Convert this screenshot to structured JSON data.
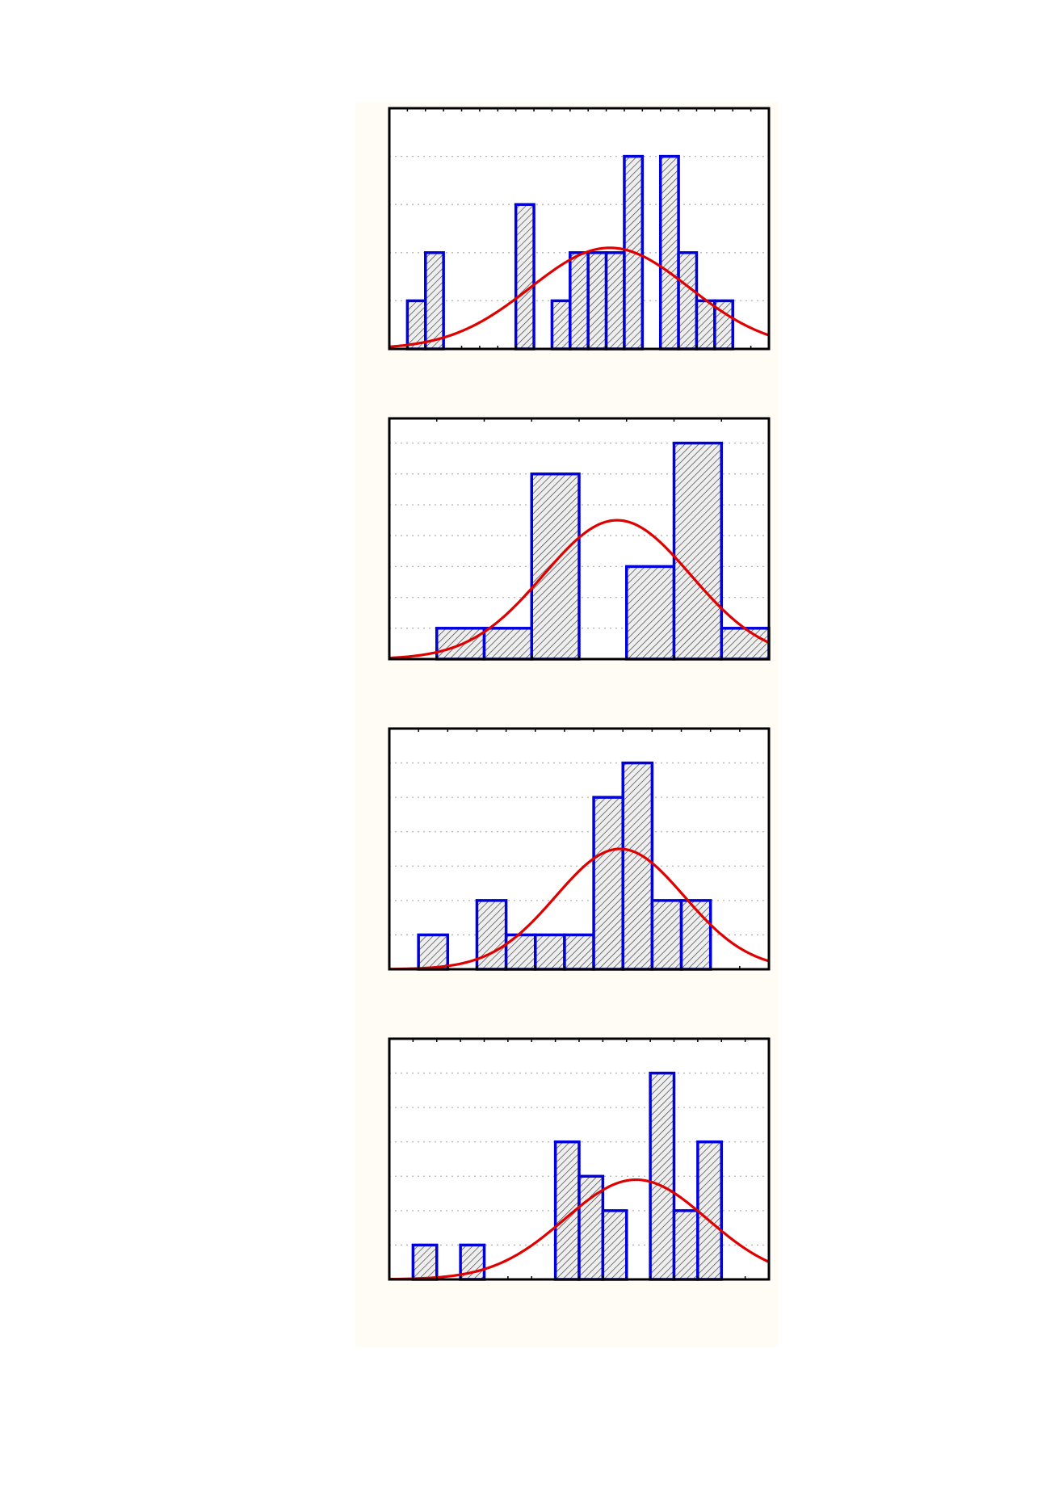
{
  "colors": {
    "panel_background": "#fffcf5",
    "plot_background": "#ffffff",
    "bar_edge": "#0000dd",
    "bar_fill": "#eeeeee",
    "hatch": "#444444",
    "curve": "#e00000",
    "frame": "#000000",
    "grid": "#b4b4b4"
  },
  "chart_data": [
    {
      "type": "bar",
      "series_kind": "histogram",
      "x": [
        0.5,
        1.5,
        2.5,
        3.5,
        4.5,
        5.5,
        6.5,
        7.5,
        8.5,
        9.5,
        10.5,
        11.5,
        12.5,
        13.5,
        14.5,
        15.5,
        16.5,
        17.5,
        18.5,
        19.5,
        20.5
      ],
      "values": [
        0,
        1,
        2,
        0,
        0,
        0,
        0,
        3,
        0,
        1,
        2,
        2,
        2,
        4,
        0,
        4,
        2,
        1,
        1,
        0,
        0
      ],
      "bin_width": 1,
      "xlim": [
        0,
        21
      ],
      "ylim": [
        0,
        5
      ],
      "grid": true,
      "normal_fit": {
        "mean": 12.2,
        "sd": 4.4,
        "peak": 2.1
      }
    },
    {
      "type": "bar",
      "series_kind": "histogram",
      "x": [
        0.5,
        1.5,
        2.5,
        3.5,
        4.5,
        5.5,
        6.5,
        7.5
      ],
      "values": [
        0,
        1,
        1,
        6,
        0,
        3,
        7,
        1
      ],
      "bin_width": 1,
      "xlim": [
        0,
        8
      ],
      "ylim": [
        0,
        7.8
      ],
      "grid": true,
      "normal_fit": {
        "mean": 4.8,
        "sd": 1.55,
        "peak": 4.5
      }
    },
    {
      "type": "bar",
      "series_kind": "histogram",
      "x": [
        0.5,
        1.5,
        2.5,
        3.5,
        4.5,
        5.5,
        6.5,
        7.5,
        8.5,
        9.5,
        10.5,
        11.5,
        12.5
      ],
      "values": [
        0,
        1,
        0,
        2,
        1,
        1,
        1,
        5,
        6,
        2,
        2,
        0,
        0
      ],
      "bin_width": 1,
      "xlim": [
        0,
        13
      ],
      "ylim": [
        0,
        7
      ],
      "grid": true,
      "normal_fit": {
        "mean": 7.9,
        "sd": 2.2,
        "peak": 3.5
      }
    },
    {
      "type": "bar",
      "series_kind": "histogram",
      "x": [
        0.5,
        1.5,
        2.5,
        3.5,
        4.5,
        5.5,
        6.5,
        7.5,
        8.5,
        9.5,
        10.5,
        11.5,
        12.5,
        13.5,
        14.5,
        15.5
      ],
      "values": [
        0,
        1,
        0,
        1,
        0,
        0,
        0,
        4,
        3,
        2,
        0,
        6,
        2,
        4,
        0,
        0
      ],
      "bin_width": 1,
      "xlim": [
        0,
        16
      ],
      "ylim": [
        0,
        7
      ],
      "grid": true,
      "normal_fit": {
        "mean": 10.4,
        "sd": 3.0,
        "peak": 2.9
      }
    }
  ]
}
